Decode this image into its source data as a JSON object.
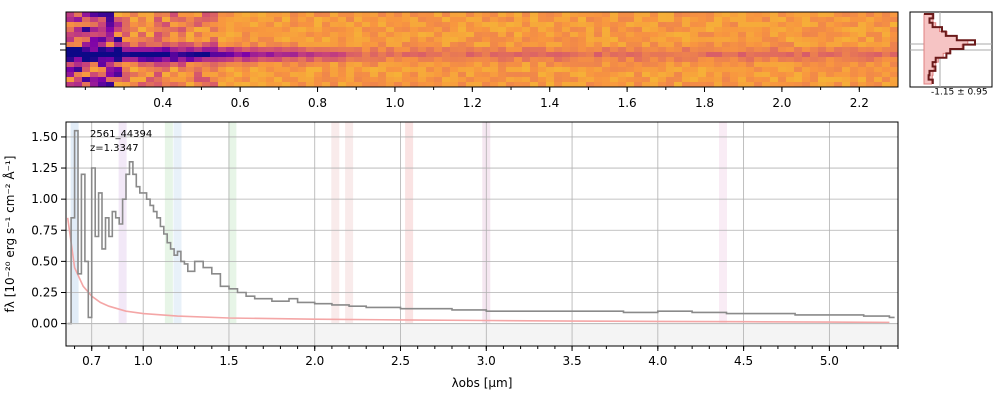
{
  "chart_data": [
    {
      "type": "heatmap",
      "title": "",
      "colormap": "plasma",
      "x_top_ticks": [
        "0.4",
        "0.6",
        "0.8",
        "1.0",
        "1.2",
        "1.4",
        "1.6",
        "1.8",
        "2.0",
        "2.2"
      ],
      "x_top_tick_values": [
        0.4,
        0.6,
        0.8,
        1.0,
        1.2,
        1.4,
        1.6,
        1.8,
        2.0,
        2.2
      ],
      "x_range_um": [
        0.15,
        2.3
      ],
      "trace_center_fraction": 0.55
    },
    {
      "type": "line",
      "annotation": "-1.15 ± 0.95",
      "x_range": [
        -2.6,
        2.0
      ],
      "histogram_y_offsets": [
        -8,
        -7,
        -6,
        -5,
        -4,
        -3,
        -2,
        -1,
        0,
        1,
        2,
        3,
        4,
        5,
        6,
        7
      ],
      "histogram_counts": [
        0.05,
        0.08,
        0.15,
        0.25,
        0.45,
        0.7,
        1.0,
        0.85,
        0.55,
        0.35,
        0.22,
        0.15,
        0.1,
        0.08,
        0.06,
        0.04
      ],
      "model_color": "#f4a6a6",
      "data_color": "#444444"
    },
    {
      "type": "line",
      "title": "",
      "label_id": "2561_44394",
      "label_z": "z=1.3347",
      "xlabel": "λobs [μm]",
      "ylabel": "fλ [10⁻²⁰ erg s⁻¹ cm⁻² Å⁻¹]",
      "xlim": [
        0.55,
        5.4
      ],
      "ylim": [
        -0.18,
        1.62
      ],
      "x_ticks": [
        0.7,
        1.0,
        1.5,
        2.0,
        2.5,
        3.0,
        3.5,
        4.0,
        4.5,
        5.0
      ],
      "x_tick_labels": [
        "0.7",
        "1.0",
        "1.5",
        "2.0",
        "2.5",
        "3.0",
        "3.5",
        "4.0",
        "4.5",
        "5.0"
      ],
      "y_ticks": [
        0.0,
        0.25,
        0.5,
        0.75,
        1.0,
        1.25,
        1.5
      ],
      "y_tick_labels": [
        "0.00",
        "0.25",
        "0.50",
        "0.75",
        "1.00",
        "1.25",
        "1.50"
      ],
      "grid": true,
      "line_bands_um": [
        {
          "x": 0.6,
          "color": "#c9dcf0"
        },
        {
          "x": 0.88,
          "color": "#e8d6f0"
        },
        {
          "x": 1.15,
          "color": "#d4ecd4"
        },
        {
          "x": 1.2,
          "color": "#d6e6f4"
        },
        {
          "x": 1.52,
          "color": "#d4ecd4"
        },
        {
          "x": 2.12,
          "color": "#f4dada"
        },
        {
          "x": 2.2,
          "color": "#f4dada"
        },
        {
          "x": 2.55,
          "color": "#f6cccc"
        },
        {
          "x": 3.0,
          "color": "#ecd4e6"
        },
        {
          "x": 4.38,
          "color": "#f4dcec"
        }
      ],
      "series": [
        {
          "style": "steps",
          "color": "#8a8a8a",
          "x": [
            0.56,
            0.58,
            0.6,
            0.62,
            0.64,
            0.66,
            0.68,
            0.7,
            0.72,
            0.74,
            0.76,
            0.78,
            0.8,
            0.82,
            0.84,
            0.86,
            0.88,
            0.9,
            0.92,
            0.94,
            0.96,
            0.98,
            1.0,
            1.02,
            1.04,
            1.06,
            1.08,
            1.1,
            1.12,
            1.14,
            1.16,
            1.18,
            1.2,
            1.22,
            1.24,
            1.26,
            1.3,
            1.35,
            1.4,
            1.45,
            1.5,
            1.55,
            1.6,
            1.65,
            1.7,
            1.75,
            1.8,
            1.85,
            1.9,
            2.0,
            2.1,
            2.2,
            2.3,
            2.4,
            2.5,
            2.6,
            2.8,
            3.0,
            3.2,
            3.4,
            3.6,
            3.8,
            4.0,
            4.2,
            4.4,
            4.6,
            4.8,
            5.0,
            5.2,
            5.35
          ],
          "values": [
            0.0,
            0.85,
            1.55,
            0.4,
            1.2,
            0.5,
            0.05,
            1.25,
            0.7,
            1.05,
            0.6,
            0.85,
            0.7,
            0.9,
            0.85,
            0.8,
            1.0,
            1.2,
            1.3,
            1.2,
            1.1,
            1.05,
            1.05,
            1.0,
            0.95,
            0.9,
            0.85,
            0.78,
            0.72,
            0.65,
            0.6,
            0.55,
            0.58,
            0.5,
            0.48,
            0.42,
            0.5,
            0.45,
            0.4,
            0.3,
            0.28,
            0.25,
            0.22,
            0.2,
            0.2,
            0.18,
            0.18,
            0.2,
            0.17,
            0.16,
            0.15,
            0.14,
            0.13,
            0.13,
            0.12,
            0.12,
            0.11,
            0.1,
            0.1,
            0.1,
            0.1,
            0.09,
            0.1,
            0.09,
            0.08,
            0.08,
            0.07,
            0.07,
            0.06,
            0.05
          ]
        },
        {
          "style": "line",
          "color": "#f4a6a6",
          "x": [
            0.56,
            0.6,
            0.65,
            0.7,
            0.75,
            0.8,
            0.9,
            1.0,
            1.2,
            1.5,
            2.0,
            2.5,
            3.0,
            3.5,
            4.0,
            4.5,
            5.0,
            5.35
          ],
          "values": [
            0.85,
            0.45,
            0.3,
            0.22,
            0.17,
            0.14,
            0.1,
            0.08,
            0.06,
            0.045,
            0.035,
            0.03,
            0.025,
            0.02,
            0.018,
            0.015,
            0.012,
            0.01
          ]
        }
      ]
    }
  ]
}
